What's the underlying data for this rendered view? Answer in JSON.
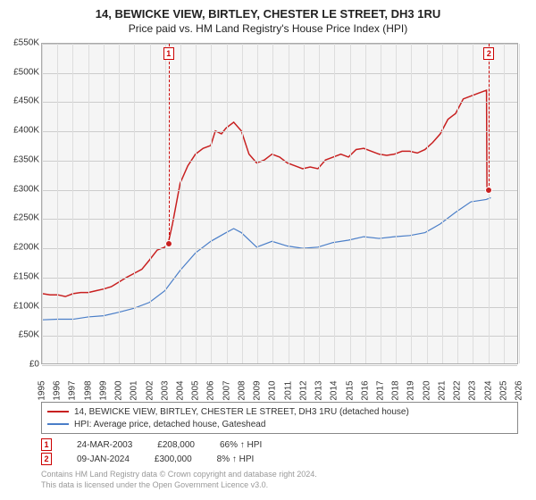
{
  "title_line1": "14, BEWICKE VIEW, BIRTLEY, CHESTER LE STREET, DH3 1RU",
  "title_line2": "Price paid vs. HM Land Registry's House Price Index (HPI)",
  "chart": {
    "type": "line",
    "background_color": "#f5f5f5",
    "grid_color": "#cccccc",
    "border_color": "#aaaaaa",
    "xlim": [
      1995,
      2026
    ],
    "ylim": [
      0,
      550000
    ],
    "ytick_step": 50000,
    "ytick_labels": [
      "£0",
      "£50K",
      "£100K",
      "£150K",
      "£200K",
      "£250K",
      "£300K",
      "£350K",
      "£400K",
      "£450K",
      "£500K",
      "£550K"
    ],
    "xtick_step": 1,
    "xtick_labels": [
      "1995",
      "1996",
      "1997",
      "1998",
      "1999",
      "2000",
      "2001",
      "2002",
      "2003",
      "2004",
      "2005",
      "2006",
      "2007",
      "2008",
      "2009",
      "2010",
      "2011",
      "2012",
      "2013",
      "2014",
      "2015",
      "2016",
      "2017",
      "2018",
      "2019",
      "2020",
      "2021",
      "2022",
      "2023",
      "2024",
      "2025",
      "2026"
    ],
    "series": [
      {
        "name": "property",
        "color": "#c82020",
        "line_width": 1.5,
        "label": "14, BEWICKE VIEW, BIRTLEY, CHESTER LE STREET, DH3 1RU (detached house)",
        "data": [
          [
            1995,
            120000
          ],
          [
            1995.5,
            118000
          ],
          [
            1996,
            118000
          ],
          [
            1996.5,
            115000
          ],
          [
            1997,
            120000
          ],
          [
            1997.5,
            122000
          ],
          [
            1998,
            122000
          ],
          [
            1998.5,
            125000
          ],
          [
            1999,
            128000
          ],
          [
            1999.5,
            132000
          ],
          [
            2000,
            140000
          ],
          [
            2000.5,
            148000
          ],
          [
            2001,
            155000
          ],
          [
            2001.5,
            162000
          ],
          [
            2002,
            178000
          ],
          [
            2002.5,
            195000
          ],
          [
            2003,
            200000
          ],
          [
            2003.23,
            208000
          ],
          [
            2003.5,
            240000
          ],
          [
            2004,
            310000
          ],
          [
            2004.5,
            340000
          ],
          [
            2005,
            360000
          ],
          [
            2005.5,
            370000
          ],
          [
            2006,
            375000
          ],
          [
            2006.3,
            400000
          ],
          [
            2006.7,
            395000
          ],
          [
            2007,
            405000
          ],
          [
            2007.5,
            415000
          ],
          [
            2008,
            400000
          ],
          [
            2008.5,
            360000
          ],
          [
            2009,
            345000
          ],
          [
            2009.5,
            350000
          ],
          [
            2010,
            360000
          ],
          [
            2010.5,
            355000
          ],
          [
            2011,
            345000
          ],
          [
            2011.5,
            340000
          ],
          [
            2012,
            335000
          ],
          [
            2012.5,
            338000
          ],
          [
            2013,
            335000
          ],
          [
            2013.5,
            350000
          ],
          [
            2014,
            355000
          ],
          [
            2014.5,
            360000
          ],
          [
            2015,
            355000
          ],
          [
            2015.5,
            368000
          ],
          [
            2016,
            370000
          ],
          [
            2016.5,
            365000
          ],
          [
            2017,
            360000
          ],
          [
            2017.5,
            358000
          ],
          [
            2018,
            360000
          ],
          [
            2018.5,
            365000
          ],
          [
            2019,
            365000
          ],
          [
            2019.5,
            362000
          ],
          [
            2020,
            368000
          ],
          [
            2020.5,
            380000
          ],
          [
            2021,
            395000
          ],
          [
            2021.5,
            420000
          ],
          [
            2022,
            430000
          ],
          [
            2022.5,
            455000
          ],
          [
            2023,
            460000
          ],
          [
            2023.5,
            465000
          ],
          [
            2024.02,
            470000
          ],
          [
            2024.05,
            300000
          ]
        ]
      },
      {
        "name": "hpi",
        "color": "#4a7ec8",
        "line_width": 1.2,
        "label": "HPI: Average price, detached house, Gateshead",
        "data": [
          [
            1995,
            75000
          ],
          [
            1996,
            76000
          ],
          [
            1997,
            76000
          ],
          [
            1998,
            80000
          ],
          [
            1999,
            82000
          ],
          [
            2000,
            88000
          ],
          [
            2001,
            95000
          ],
          [
            2002,
            105000
          ],
          [
            2003,
            125000
          ],
          [
            2004,
            160000
          ],
          [
            2005,
            190000
          ],
          [
            2006,
            210000
          ],
          [
            2007,
            225000
          ],
          [
            2007.5,
            232000
          ],
          [
            2008,
            225000
          ],
          [
            2009,
            200000
          ],
          [
            2010,
            210000
          ],
          [
            2011,
            202000
          ],
          [
            2012,
            198000
          ],
          [
            2013,
            200000
          ],
          [
            2014,
            208000
          ],
          [
            2015,
            212000
          ],
          [
            2016,
            218000
          ],
          [
            2017,
            215000
          ],
          [
            2018,
            218000
          ],
          [
            2019,
            220000
          ],
          [
            2020,
            225000
          ],
          [
            2021,
            240000
          ],
          [
            2022,
            260000
          ],
          [
            2023,
            278000
          ],
          [
            2024,
            282000
          ],
          [
            2024.3,
            285000
          ]
        ]
      }
    ],
    "markers": [
      {
        "num": "1",
        "x": 2003.23,
        "y": 208000,
        "date": "24-MAR-2003",
        "price": "£208,000",
        "rel": "66% ↑ HPI"
      },
      {
        "num": "2",
        "x": 2024.05,
        "y": 300000,
        "date": "09-JAN-2024",
        "price": "£300,000",
        "rel": "8% ↑ HPI"
      }
    ]
  },
  "legend": {
    "series1_label": "14, BEWICKE VIEW, BIRTLEY, CHESTER LE STREET, DH3 1RU (detached house)",
    "series2_label": "HPI: Average price, detached house, Gateshead"
  },
  "footer_line1": "Contains HM Land Registry data © Crown copyright and database right 2024.",
  "footer_line2": "This data is licensed under the Open Government Licence v3.0."
}
